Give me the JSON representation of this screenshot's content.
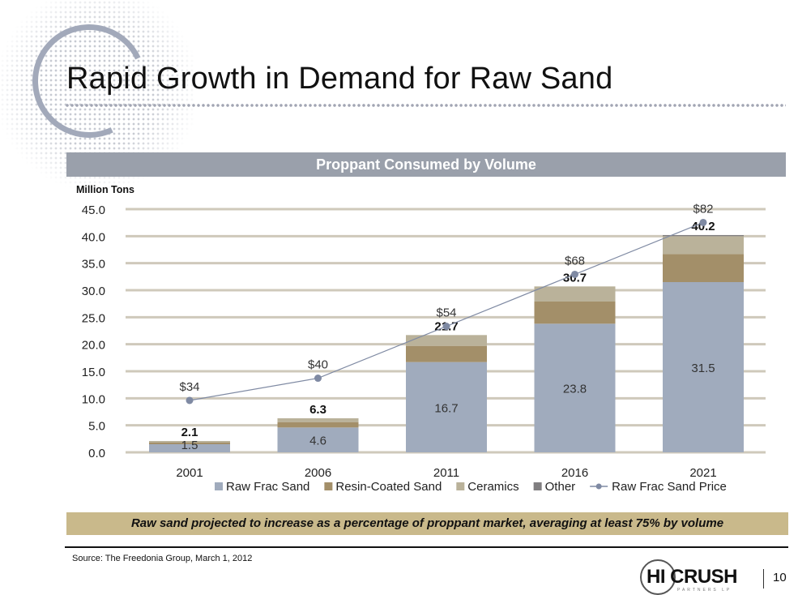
{
  "slide": {
    "title": "Rapid Growth in Demand for Raw Sand",
    "chart_header": "Proppant Consumed by Volume",
    "banner": "Raw sand projected to increase as a percentage of proppant market, averaging at least 75% by volume",
    "source": "Source: The Freedonia Group, March 1, 2012",
    "logo_text": "HI CRUSH",
    "logo_subtext": "PARTNERS LP",
    "page_number": "10"
  },
  "chart_data": {
    "type": "bar",
    "stacked": true,
    "title": "Proppant Consumed by Volume",
    "ylabel": "Million Tons",
    "xlabel": "",
    "ylim": [
      0,
      45
    ],
    "yticks": [
      "0.0",
      "5.0",
      "10.0",
      "15.0",
      "20.0",
      "25.0",
      "30.0",
      "35.0",
      "40.0",
      "45.0"
    ],
    "grid": true,
    "legend_position": "bottom",
    "categories": [
      "2001",
      "2006",
      "2011",
      "2016",
      "2021"
    ],
    "series": [
      {
        "name": "Raw Frac Sand",
        "color": "#a0abbd",
        "values": [
          1.5,
          4.6,
          16.7,
          23.8,
          31.5
        ],
        "labels": [
          "1.5",
          "4.6",
          "16.7",
          "23.8",
          "31.5"
        ]
      },
      {
        "name": "Resin-Coated Sand",
        "color": "#a38f69",
        "values": [
          0.3,
          1.0,
          3.0,
          4.1,
          5.2
        ]
      },
      {
        "name": "Ceramics",
        "color": "#bab29a",
        "values": [
          0.3,
          0.7,
          2.0,
          2.8,
          3.3
        ]
      },
      {
        "name": "Other",
        "color": "#807e80",
        "values": [
          0.0,
          0.0,
          0.0,
          0.0,
          0.2
        ]
      }
    ],
    "totals": [
      "2.1",
      "6.3",
      "21.7",
      "30.7",
      "40.2"
    ],
    "line_series": {
      "name": "Raw Frac Sand Price",
      "color": "#7f8aa3",
      "values": [
        34,
        40,
        54,
        68,
        82
      ],
      "labels": [
        "$34",
        "$40",
        "$54",
        "$68",
        "$82"
      ]
    }
  }
}
